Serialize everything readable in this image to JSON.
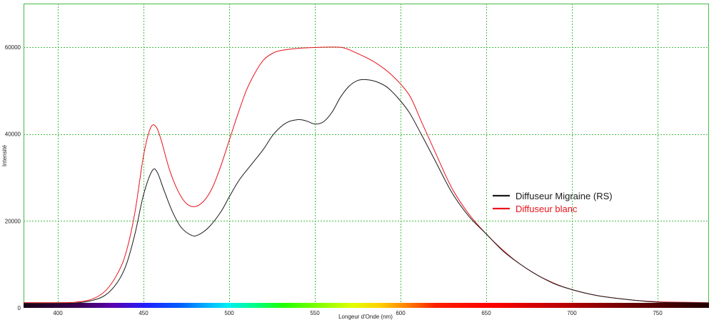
{
  "chart_data": {
    "type": "line",
    "title": "",
    "xlabel": "Longeur d'Onde (nm)",
    "ylabel": "Intensité",
    "xlim": [
      380,
      780
    ],
    "ylim": [
      0,
      70000
    ],
    "x_ticks": [
      400,
      450,
      500,
      550,
      600,
      650,
      700,
      750
    ],
    "y_ticks": [
      0,
      20000,
      40000,
      60000
    ],
    "grid": true,
    "spectrum_bar": true,
    "legend_position": "right",
    "series": [
      {
        "name": "Diffuseur Migraine (RS)",
        "color": "#1a1a1a",
        "points": [
          [
            380,
            1000
          ],
          [
            400,
            1000
          ],
          [
            410,
            1100
          ],
          [
            420,
            1700
          ],
          [
            428,
            3000
          ],
          [
            435,
            6000
          ],
          [
            440,
            10000
          ],
          [
            445,
            17000
          ],
          [
            450,
            26000
          ],
          [
            455,
            31500
          ],
          [
            458,
            31200
          ],
          [
            462,
            27000
          ],
          [
            467,
            22000
          ],
          [
            472,
            18500
          ],
          [
            478,
            16700
          ],
          [
            482,
            16800
          ],
          [
            488,
            18500
          ],
          [
            495,
            22000
          ],
          [
            500,
            25500
          ],
          [
            506,
            29500
          ],
          [
            513,
            33000
          ],
          [
            520,
            36500
          ],
          [
            526,
            40000
          ],
          [
            533,
            42500
          ],
          [
            540,
            43300
          ],
          [
            545,
            43000
          ],
          [
            550,
            42300
          ],
          [
            555,
            42800
          ],
          [
            560,
            45000
          ],
          [
            565,
            48500
          ],
          [
            570,
            51000
          ],
          [
            575,
            52300
          ],
          [
            580,
            52500
          ],
          [
            586,
            52000
          ],
          [
            592,
            50800
          ],
          [
            598,
            48500
          ],
          [
            605,
            45000
          ],
          [
            612,
            40000
          ],
          [
            620,
            34000
          ],
          [
            630,
            26500
          ],
          [
            640,
            21000
          ],
          [
            650,
            17000
          ],
          [
            660,
            13000
          ],
          [
            670,
            10000
          ],
          [
            680,
            7500
          ],
          [
            690,
            5500
          ],
          [
            700,
            4200
          ],
          [
            710,
            3200
          ],
          [
            720,
            2500
          ],
          [
            735,
            1800
          ],
          [
            750,
            1300
          ],
          [
            765,
            1200
          ],
          [
            780,
            1100
          ]
        ]
      },
      {
        "name": "Diffuseur blanc",
        "color": "#e8141c",
        "points": [
          [
            380,
            1200
          ],
          [
            400,
            1200
          ],
          [
            410,
            1300
          ],
          [
            420,
            2000
          ],
          [
            428,
            4000
          ],
          [
            435,
            8000
          ],
          [
            440,
            13000
          ],
          [
            445,
            22000
          ],
          [
            450,
            35000
          ],
          [
            454,
            41300
          ],
          [
            457,
            41800
          ],
          [
            460,
            39000
          ],
          [
            465,
            32000
          ],
          [
            470,
            27000
          ],
          [
            475,
            24000
          ],
          [
            480,
            23300
          ],
          [
            485,
            24500
          ],
          [
            490,
            27500
          ],
          [
            495,
            32500
          ],
          [
            500,
            38500
          ],
          [
            505,
            44500
          ],
          [
            510,
            50000
          ],
          [
            515,
            54000
          ],
          [
            520,
            57000
          ],
          [
            525,
            58500
          ],
          [
            530,
            59200
          ],
          [
            540,
            59700
          ],
          [
            550,
            59900
          ],
          [
            560,
            60000
          ],
          [
            567,
            59800
          ],
          [
            575,
            58500
          ],
          [
            585,
            56500
          ],
          [
            595,
            53500
          ],
          [
            605,
            49000
          ],
          [
            612,
            43000
          ],
          [
            620,
            36000
          ],
          [
            630,
            27500
          ],
          [
            640,
            21500
          ],
          [
            650,
            17000
          ],
          [
            660,
            13200
          ],
          [
            670,
            10000
          ],
          [
            680,
            7500
          ],
          [
            690,
            5600
          ],
          [
            700,
            4200
          ],
          [
            710,
            3200
          ],
          [
            720,
            2500
          ],
          [
            735,
            1800
          ],
          [
            750,
            1400
          ],
          [
            765,
            1300
          ],
          [
            780,
            1200
          ]
        ]
      }
    ]
  }
}
